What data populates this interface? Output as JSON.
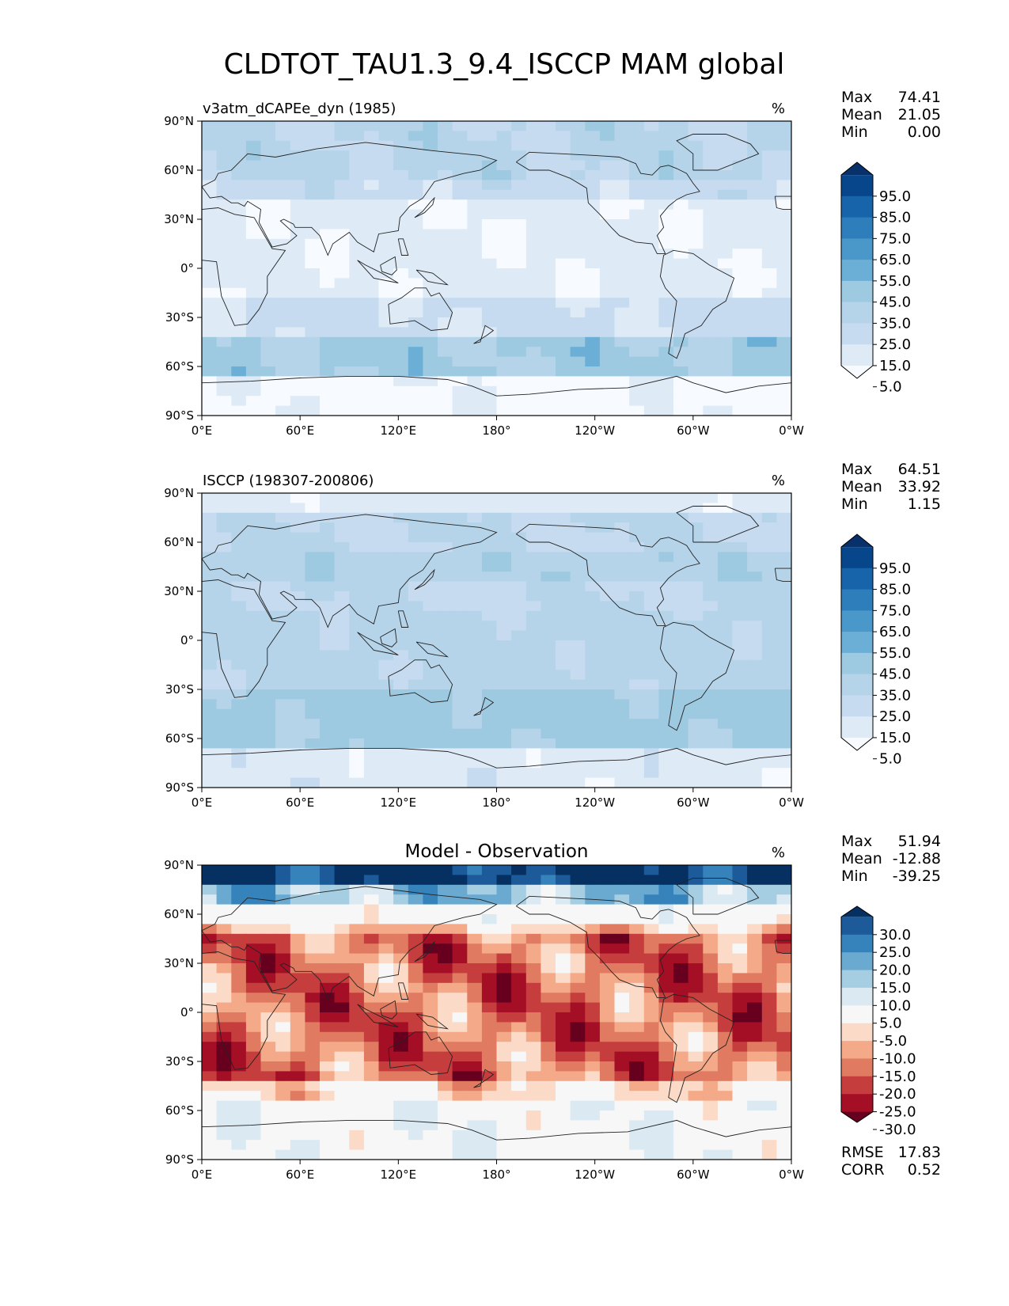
{
  "figure_title": "CLDTOT_TAU1.3_9.4_ISCCP MAM global",
  "colors": {
    "blues": [
      "#f7fbff",
      "#deebf7",
      "#c6dbef",
      "#b5d4e9",
      "#9ecae1",
      "#6baed6",
      "#4a98c9",
      "#2e7ebc",
      "#1764ab",
      "#08468b",
      "#08306b"
    ],
    "rdbu": [
      "#67001f",
      "#a50f26",
      "#c53e3d",
      "#e07b62",
      "#f4a988",
      "#fbdac8",
      "#f7f7f7",
      "#dbeaf2",
      "#a6cee3",
      "#6aa9d0",
      "#3683bb",
      "#1c5a99",
      "#053061"
    ]
  },
  "chart_data": [
    {
      "type": "heatmap",
      "panel": "test",
      "title": "v3atm_dCAPEe_dyn (1985)",
      "units": "%",
      "stats": [
        {
          "label": "Max",
          "value": "74.41"
        },
        {
          "label": "Mean",
          "value": "21.05"
        },
        {
          "label": "Min",
          "value": "0.00"
        }
      ],
      "colorbar_levels": [
        "95.0",
        "85.0",
        "75.0",
        "65.0",
        "55.0",
        "45.0",
        "35.0",
        "25.0",
        "15.0",
        "5.0"
      ],
      "x_ticks": [
        "0°E",
        "60°E",
        "120°E",
        "180°",
        "120°W",
        "60°W",
        "0°W"
      ],
      "y_ticks": [
        "90°N",
        "60°N",
        "30°N",
        "0°",
        "30°S",
        "60°S",
        "90°S"
      ],
      "xlim": [
        0,
        360
      ],
      "ylim": [
        -90,
        90
      ],
      "zonal_mean_profile": [
        {
          "lat": 90,
          "value": 30
        },
        {
          "lat": 75,
          "value": 32
        },
        {
          "lat": 60,
          "value": 28
        },
        {
          "lat": 45,
          "value": 25
        },
        {
          "lat": 30,
          "value": 16
        },
        {
          "lat": 15,
          "value": 10
        },
        {
          "lat": 0,
          "value": 12
        },
        {
          "lat": -15,
          "value": 12
        },
        {
          "lat": -30,
          "value": 20
        },
        {
          "lat": -45,
          "value": 30
        },
        {
          "lat": -60,
          "value": 42
        },
        {
          "lat": -75,
          "value": 10
        },
        {
          "lat": -90,
          "value": 2
        }
      ]
    },
    {
      "type": "heatmap",
      "panel": "reference",
      "title": "ISCCP (198307-200806)",
      "units": "%",
      "stats": [
        {
          "label": "Max",
          "value": "64.51"
        },
        {
          "label": "Mean",
          "value": "33.92"
        },
        {
          "label": "Min",
          "value": "1.15"
        }
      ],
      "colorbar_levels": [
        "95.0",
        "85.0",
        "75.0",
        "65.0",
        "55.0",
        "45.0",
        "35.0",
        "25.0",
        "15.0",
        "5.0"
      ],
      "x_ticks": [
        "0°E",
        "60°E",
        "120°E",
        "180°",
        "120°W",
        "60°W",
        "0°W"
      ],
      "y_ticks": [
        "90°N",
        "60°N",
        "30°N",
        "0°",
        "30°S",
        "60°S",
        "90°S"
      ],
      "xlim": [
        0,
        360
      ],
      "ylim": [
        -90,
        90
      ],
      "zonal_mean_profile": [
        {
          "lat": 90,
          "value": 15
        },
        {
          "lat": 75,
          "value": 22
        },
        {
          "lat": 60,
          "value": 28
        },
        {
          "lat": 45,
          "value": 35
        },
        {
          "lat": 30,
          "value": 33
        },
        {
          "lat": 15,
          "value": 30
        },
        {
          "lat": 0,
          "value": 32
        },
        {
          "lat": -15,
          "value": 34
        },
        {
          "lat": -30,
          "value": 36
        },
        {
          "lat": -45,
          "value": 42
        },
        {
          "lat": -60,
          "value": 40
        },
        {
          "lat": -75,
          "value": 18
        },
        {
          "lat": -90,
          "value": 10
        }
      ]
    },
    {
      "type": "heatmap",
      "panel": "difference",
      "title": "Model - Observation",
      "units": "%",
      "stats": [
        {
          "label": "Max",
          "value": "51.94"
        },
        {
          "label": "Mean",
          "value": "-12.88"
        },
        {
          "label": "Min",
          "value": "-39.25"
        }
      ],
      "bottom_stats": [
        {
          "label": "RMSE",
          "value": "17.83"
        },
        {
          "label": "CORR",
          "value": "0.52"
        }
      ],
      "colorbar_levels": [
        "30.0",
        "25.0",
        "20.0",
        "15.0",
        "10.0",
        "5.0",
        "-5.0",
        "-10.0",
        "-15.0",
        "-20.0",
        "-25.0",
        "-30.0"
      ],
      "x_ticks": [
        "0°E",
        "60°E",
        "120°E",
        "180°",
        "120°W",
        "60°W",
        "0°W"
      ],
      "y_ticks": [
        "90°N",
        "60°N",
        "30°N",
        "0°",
        "30°S",
        "60°S",
        "90°S"
      ],
      "xlim": [
        0,
        360
      ],
      "ylim": [
        -90,
        90
      ],
      "zonal_mean_profile": [
        {
          "lat": 90,
          "value": 30
        },
        {
          "lat": 80,
          "value": 25
        },
        {
          "lat": 70,
          "value": 5
        },
        {
          "lat": 60,
          "value": -3
        },
        {
          "lat": 45,
          "value": -12
        },
        {
          "lat": 30,
          "value": -18
        },
        {
          "lat": 15,
          "value": -20
        },
        {
          "lat": 0,
          "value": -18
        },
        {
          "lat": -15,
          "value": -22
        },
        {
          "lat": -30,
          "value": -24
        },
        {
          "lat": -45,
          "value": -15
        },
        {
          "lat": -60,
          "value": 0
        },
        {
          "lat": -75,
          "value": 5
        },
        {
          "lat": -90,
          "value": 0
        }
      ]
    }
  ]
}
